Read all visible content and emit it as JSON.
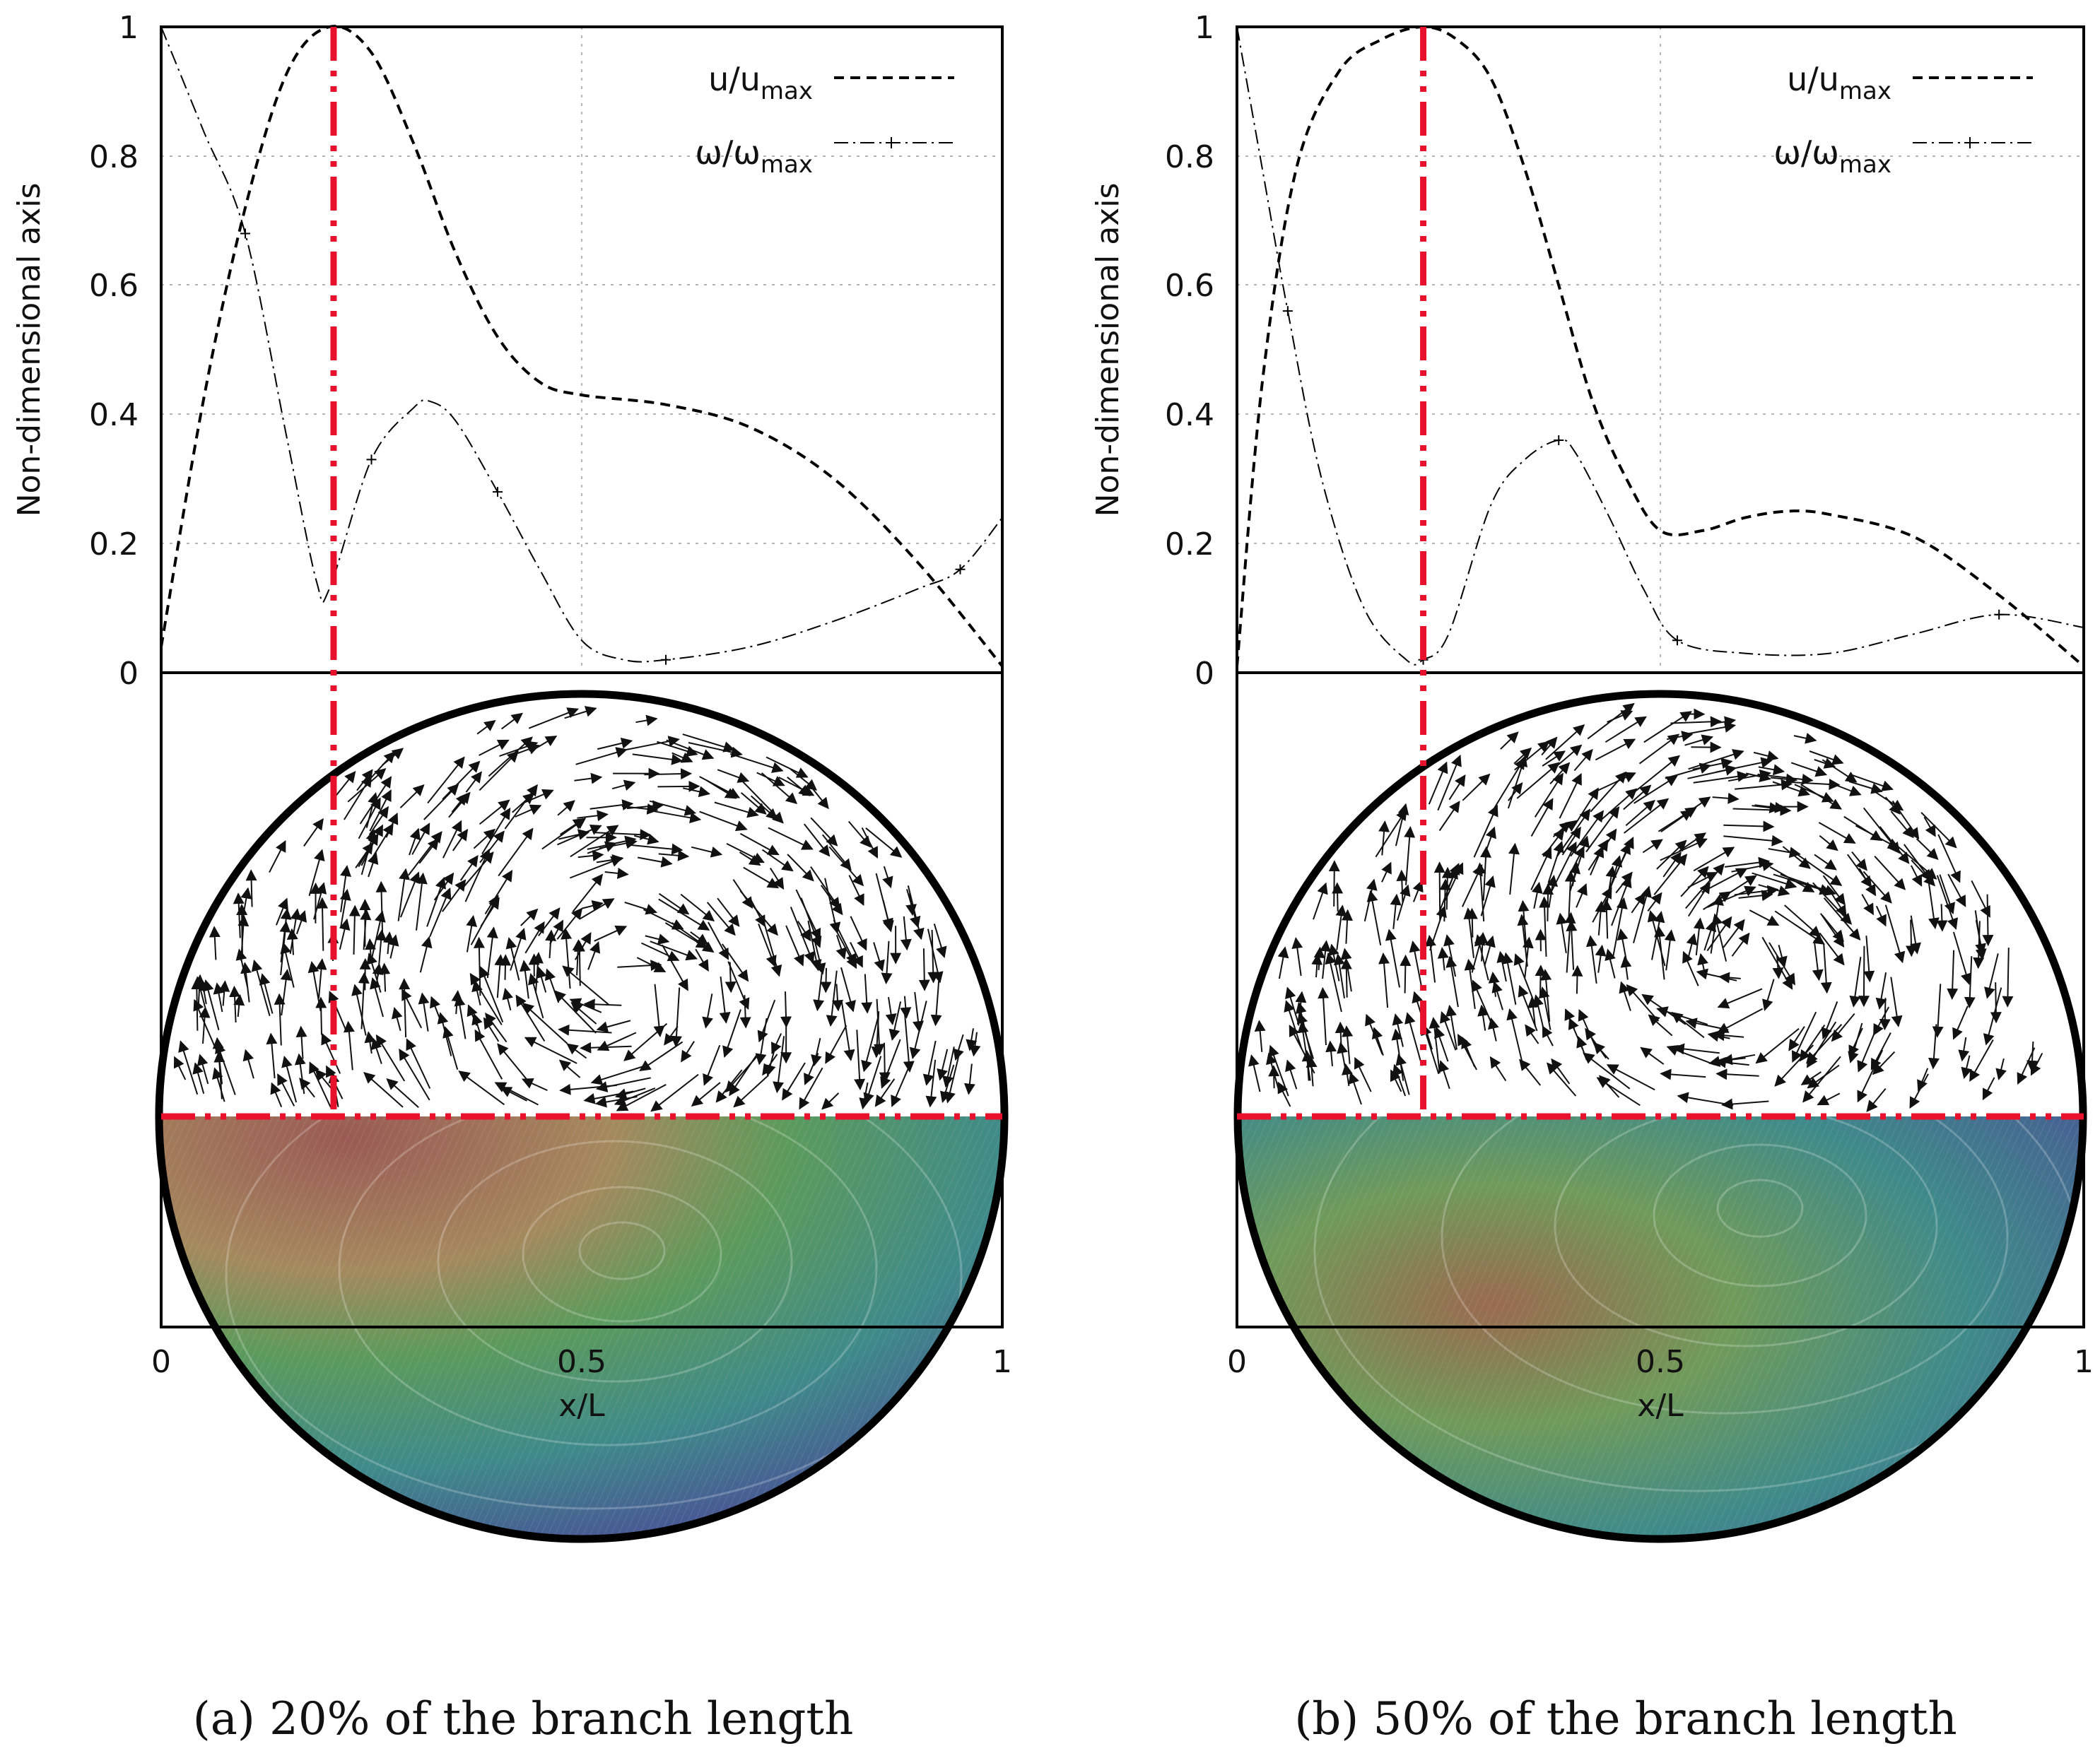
{
  "chart_data": [
    {
      "id": "a",
      "type": "line",
      "caption": "(a) 20% of the branch length",
      "xlabel": "x/L",
      "ylabel": "Non-dimensional axis",
      "xlim": [
        0,
        1
      ],
      "ylim": [
        0,
        1
      ],
      "x_ticks": [
        "0",
        "0.5",
        "1"
      ],
      "y_ticks": [
        "0",
        "0.2",
        "0.4",
        "0.6",
        "0.8",
        "1"
      ],
      "grid": true,
      "legend_position": "top-right",
      "marker_x": 0.205,
      "series": [
        {
          "name": "u/umax",
          "label_main": "u/u",
          "label_sub": "max",
          "style": "dashed",
          "x": [
            0,
            0.05,
            0.1,
            0.15,
            0.2,
            0.25,
            0.3,
            0.35,
            0.4,
            0.45,
            0.5,
            0.6,
            0.7,
            0.8,
            0.9,
            1
          ],
          "y": [
            0.04,
            0.42,
            0.72,
            0.93,
            1.0,
            0.96,
            0.82,
            0.65,
            0.52,
            0.45,
            0.43,
            0.415,
            0.38,
            0.3,
            0.17,
            0.01
          ]
        },
        {
          "name": "ω/ωmax",
          "label_main": "ω/ω",
          "label_sub": "max",
          "style": "dashdot",
          "x": [
            0,
            0.05,
            0.1,
            0.15,
            0.185,
            0.2,
            0.25,
            0.3,
            0.32,
            0.35,
            0.4,
            0.45,
            0.5,
            0.55,
            0.6,
            0.7,
            0.8,
            0.9,
            0.95,
            1
          ],
          "y": [
            1.0,
            0.84,
            0.68,
            0.36,
            0.14,
            0.13,
            0.33,
            0.41,
            0.42,
            0.39,
            0.28,
            0.16,
            0.05,
            0.02,
            0.02,
            0.04,
            0.08,
            0.13,
            0.16,
            0.24
          ]
        }
      ]
    },
    {
      "id": "b",
      "type": "line",
      "caption": "(b) 50% of the branch length",
      "xlabel": "x/L",
      "ylabel": "Non-dimensional axis",
      "xlim": [
        0,
        1
      ],
      "ylim": [
        0,
        1
      ],
      "x_ticks": [
        "0",
        "0.5",
        "1"
      ],
      "y_ticks": [
        "0",
        "0.2",
        "0.4",
        "0.6",
        "0.8",
        "1"
      ],
      "grid": true,
      "legend_position": "top-right",
      "marker_x": 0.22,
      "series": [
        {
          "name": "u/umax",
          "label_main": "u/u",
          "label_sub": "max",
          "style": "dashed",
          "x": [
            0,
            0.03,
            0.07,
            0.12,
            0.17,
            0.22,
            0.26,
            0.3,
            0.34,
            0.38,
            0.42,
            0.46,
            0.5,
            0.55,
            0.6,
            0.65,
            0.7,
            0.8,
            0.9,
            1
          ],
          "y": [
            0.01,
            0.45,
            0.78,
            0.93,
            0.98,
            1.0,
            0.98,
            0.92,
            0.78,
            0.6,
            0.42,
            0.3,
            0.22,
            0.22,
            0.24,
            0.25,
            0.245,
            0.21,
            0.12,
            0.01
          ]
        },
        {
          "name": "ω/ωmax",
          "label_main": "ω/ω",
          "label_sub": "max",
          "style": "dashdot",
          "x": [
            0,
            0.03,
            0.06,
            0.1,
            0.15,
            0.2,
            0.22,
            0.25,
            0.3,
            0.34,
            0.38,
            0.4,
            0.44,
            0.48,
            0.52,
            0.6,
            0.7,
            0.8,
            0.9,
            1
          ],
          "y": [
            1.0,
            0.78,
            0.56,
            0.3,
            0.1,
            0.02,
            0.02,
            0.06,
            0.26,
            0.33,
            0.36,
            0.34,
            0.24,
            0.13,
            0.05,
            0.03,
            0.03,
            0.06,
            0.09,
            0.07
          ]
        }
      ]
    }
  ],
  "colors": {
    "marker": "#e8112d",
    "axis": "#000000",
    "grid": "#b5b5b5",
    "arrows": "#111111",
    "lic_red": "#9a5a55",
    "lic_orange": "#a5895e",
    "lic_green": "#5c9a5c",
    "lic_teal": "#3f8a8a",
    "lic_blue": "#4a4f96"
  }
}
